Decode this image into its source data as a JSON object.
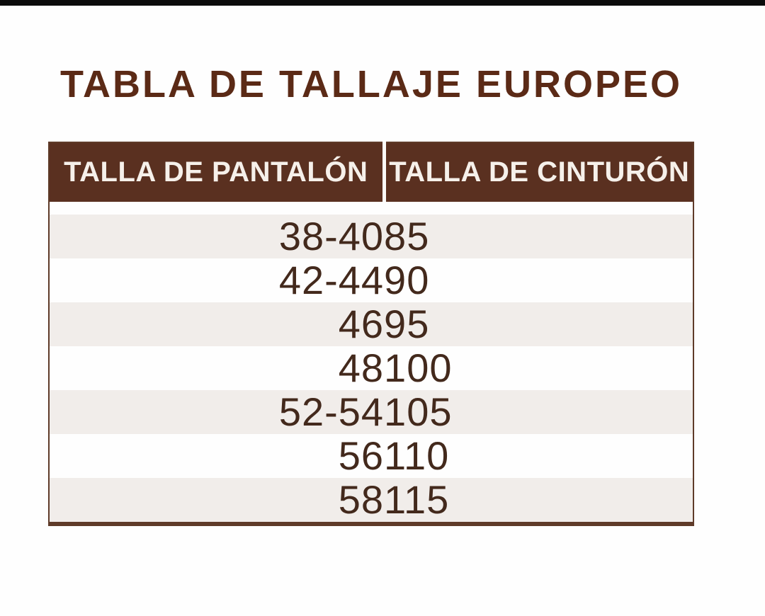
{
  "page": {
    "title": "TABLA DE TALLAJE EUROPEO"
  },
  "colors": {
    "top_bar": "#0b0b0b",
    "title_text": "#5b2a16",
    "header_bg": "#5a3020",
    "header_text": "#f6f0ea",
    "header_divider": "#fbfaf8",
    "body_text": "#43291c",
    "row_stripe": "#f1edea",
    "table_border": "#5f3b29",
    "page_bg": "#fefefe"
  },
  "table": {
    "columns": [
      {
        "label": "TALLA DE PANTALÓN"
      },
      {
        "label": "TALLA DE CINTURÓN"
      }
    ],
    "rows": [
      {
        "pantalon": "38-40",
        "cinturon": "85"
      },
      {
        "pantalon": "42-44",
        "cinturon": "90"
      },
      {
        "pantalon": "46",
        "cinturon": "95"
      },
      {
        "pantalon": "48",
        "cinturon": "100"
      },
      {
        "pantalon": "52-54",
        "cinturon": "105"
      },
      {
        "pantalon": "56",
        "cinturon": "110"
      },
      {
        "pantalon": "58",
        "cinturon": "115"
      }
    ]
  }
}
